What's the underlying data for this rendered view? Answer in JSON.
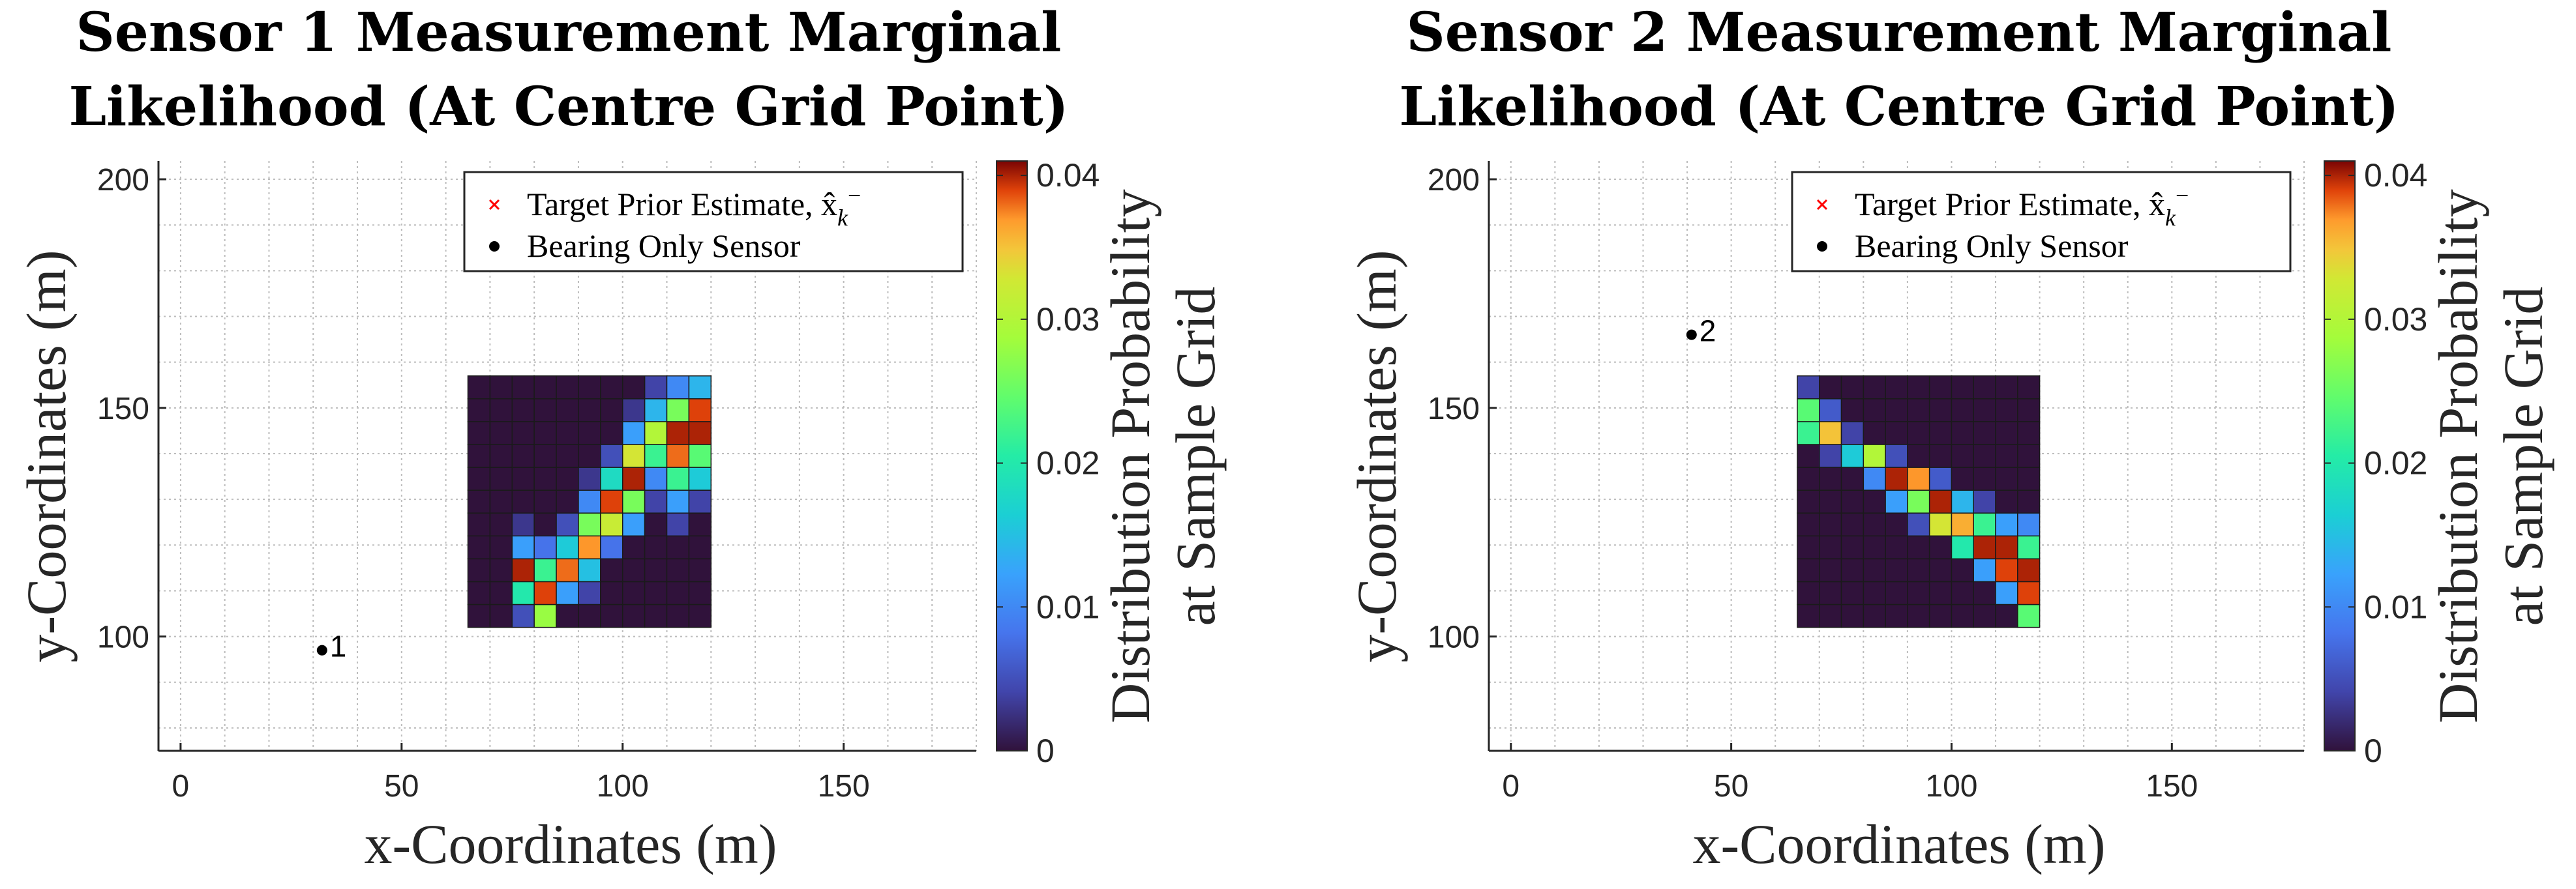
{
  "chart_data": [
    {
      "type": "heatmap",
      "title_lines": [
        "Sensor 1 Measurement Marginal",
        "Likelihood (At Centre Grid Point)"
      ],
      "xlabel": "x-Coordinates (m)",
      "ylabel": "y-Coordinates (m)",
      "xlim": [
        -5,
        180
      ],
      "ylim": [
        75,
        204
      ],
      "xticks": [
        0,
        50,
        100,
        150
      ],
      "yticks": [
        100,
        150,
        200
      ],
      "grid": true,
      "legend": {
        "position": "top-right",
        "entries": [
          {
            "label": "Target Prior Estimate, x̂",
            "sub": "k",
            "sup": "−",
            "marker": "x",
            "color": "#ff0000"
          },
          {
            "label": "Bearing Only Sensor",
            "marker": "dot",
            "color": "#000000"
          }
        ]
      },
      "sensor": {
        "label": "1",
        "x": 32,
        "y": 97
      },
      "heatmap": {
        "x_min": 65,
        "x_max": 120,
        "y_min": 102,
        "y_max": 157,
        "nx": 11,
        "ny": 11,
        "cells": [
          [
            2,
            0,
            0.005
          ],
          [
            2,
            1,
            0.02
          ],
          [
            2,
            2,
            0.04
          ],
          [
            2,
            3,
            0.012
          ],
          [
            2,
            4,
            0.003
          ],
          [
            3,
            0,
            0.028
          ],
          [
            3,
            1,
            0.039
          ],
          [
            3,
            2,
            0.022
          ],
          [
            3,
            3,
            0.008
          ],
          [
            4,
            1,
            0.012
          ],
          [
            4,
            2,
            0.038
          ],
          [
            4,
            3,
            0.016
          ],
          [
            4,
            4,
            0.005
          ],
          [
            5,
            1,
            0.004
          ],
          [
            5,
            2,
            0.015
          ],
          [
            5,
            3,
            0.037
          ],
          [
            5,
            4,
            0.026
          ],
          [
            5,
            5,
            0.01
          ],
          [
            5,
            6,
            0.003
          ],
          [
            6,
            3,
            0.008
          ],
          [
            6,
            4,
            0.032
          ],
          [
            6,
            5,
            0.039
          ],
          [
            6,
            6,
            0.018
          ],
          [
            6,
            7,
            0.005
          ],
          [
            7,
            4,
            0.012
          ],
          [
            7,
            5,
            0.026
          ],
          [
            7,
            6,
            0.04
          ],
          [
            7,
            7,
            0.033
          ],
          [
            7,
            8,
            0.012
          ],
          [
            7,
            9,
            0.003
          ],
          [
            8,
            5,
            0.004
          ],
          [
            8,
            6,
            0.01
          ],
          [
            8,
            7,
            0.022
          ],
          [
            8,
            8,
            0.03
          ],
          [
            8,
            9,
            0.014
          ],
          [
            8,
            10,
            0.004
          ],
          [
            9,
            4,
            0.004
          ],
          [
            9,
            5,
            0.012
          ],
          [
            9,
            6,
            0.022
          ],
          [
            9,
            7,
            0.038
          ],
          [
            9,
            8,
            0.04
          ],
          [
            9,
            9,
            0.026
          ],
          [
            9,
            10,
            0.01
          ],
          [
            10,
            5,
            0.004
          ],
          [
            10,
            6,
            0.016
          ],
          [
            10,
            7,
            0.024
          ],
          [
            10,
            8,
            0.04
          ],
          [
            10,
            9,
            0.039
          ],
          [
            10,
            10,
            0.014
          ]
        ]
      },
      "colorbar": {
        "label_lines": [
          "Distribution Probability",
          "at Sample Grid"
        ],
        "min": 0,
        "max": 0.041,
        "ticks": [
          "0",
          "0.01",
          "0.02",
          "0.03",
          "0.04"
        ],
        "tick_values": [
          0,
          0.01,
          0.02,
          0.03,
          0.04
        ]
      }
    },
    {
      "type": "heatmap",
      "title_lines": [
        "Sensor 2 Measurement Marginal",
        "Likelihood (At Centre Grid Point)"
      ],
      "xlabel": "x-Coordinates (m)",
      "ylabel": "y-Coordinates (m)",
      "xlim": [
        -5,
        180
      ],
      "ylim": [
        75,
        204
      ],
      "xticks": [
        0,
        50,
        100,
        150
      ],
      "yticks": [
        100,
        150,
        200
      ],
      "grid": true,
      "legend": {
        "position": "top-right",
        "entries": [
          {
            "label": "Target Prior Estimate, x̂",
            "sub": "k",
            "sup": "−",
            "marker": "x",
            "color": "#ff0000"
          },
          {
            "label": "Bearing Only Sensor",
            "marker": "dot",
            "color": "#000000"
          }
        ]
      },
      "sensor": {
        "label": "2",
        "x": 41,
        "y": 166
      },
      "heatmap": {
        "x_min": 65,
        "x_max": 120,
        "y_min": 102,
        "y_max": 157,
        "nx": 11,
        "ny": 11,
        "cells": [
          [
            0,
            9,
            0.024
          ],
          [
            0,
            10,
            0.004
          ],
          [
            0,
            8,
            0.022
          ],
          [
            1,
            8,
            0.035
          ],
          [
            1,
            9,
            0.006
          ],
          [
            1,
            7,
            0.004
          ],
          [
            2,
            7,
            0.016
          ],
          [
            2,
            8,
            0.004
          ],
          [
            3,
            6,
            0.01
          ],
          [
            3,
            7,
            0.03
          ],
          [
            4,
            5,
            0.012
          ],
          [
            4,
            6,
            0.04
          ],
          [
            4,
            7,
            0.005
          ],
          [
            5,
            5,
            0.026
          ],
          [
            5,
            6,
            0.037
          ],
          [
            5,
            4,
            0.005
          ],
          [
            6,
            4,
            0.033
          ],
          [
            6,
            5,
            0.04
          ],
          [
            6,
            6,
            0.006
          ],
          [
            7,
            3,
            0.02
          ],
          [
            7,
            4,
            0.036
          ],
          [
            7,
            5,
            0.014
          ],
          [
            8,
            2,
            0.012
          ],
          [
            8,
            3,
            0.04
          ],
          [
            8,
            4,
            0.022
          ],
          [
            8,
            5,
            0.004
          ],
          [
            9,
            1,
            0.012
          ],
          [
            9,
            2,
            0.039
          ],
          [
            9,
            3,
            0.04
          ],
          [
            9,
            4,
            0.012
          ],
          [
            10,
            0,
            0.024
          ],
          [
            10,
            1,
            0.039
          ],
          [
            10,
            2,
            0.04
          ],
          [
            10,
            3,
            0.022
          ],
          [
            10,
            4,
            0.01
          ]
        ]
      },
      "colorbar": {
        "label_lines": [
          "Distribution Probability",
          "at Sample Grid"
        ],
        "min": 0,
        "max": 0.041,
        "ticks": [
          "0",
          "0.01",
          "0.02",
          "0.03",
          "0.04"
        ],
        "tick_values": [
          0,
          0.01,
          0.02,
          0.03,
          0.04
        ]
      }
    }
  ]
}
